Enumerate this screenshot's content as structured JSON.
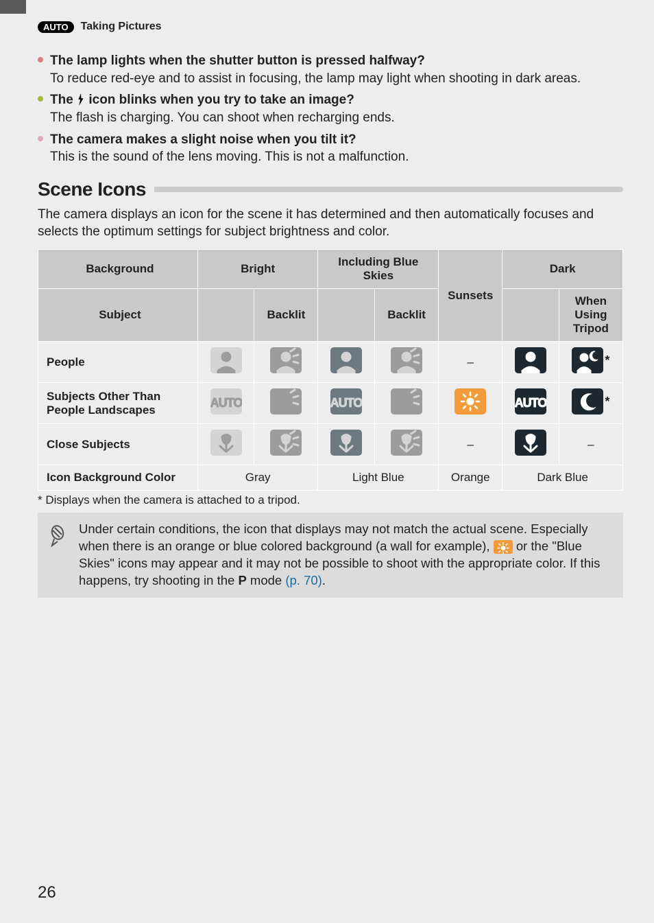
{
  "header": {
    "badge_text": "AUTO",
    "title": "Taking Pictures"
  },
  "bullets": [
    {
      "dot_color": "#d77e7e",
      "q": "The lamp lights when the shutter button is pressed halfway?",
      "a": "To reduce red-eye and to assist in focusing, the lamp may light when shooting in dark areas."
    },
    {
      "dot_color": "#a0b93e",
      "q_pre": "The ",
      "q_post": " icon blinks when you try to take an image?",
      "a": "The flash is charging. You can shoot when recharging ends.",
      "has_flash_icon": true
    },
    {
      "dot_color": "#e0a8b8",
      "q": "The camera makes a slight noise when you tilt it?",
      "a": "This is the sound of the lens moving. This is not a malfunction."
    }
  ],
  "section_heading": "Scene Icons",
  "intro": "The camera displays an icon for the scene it has determined and then automatically focuses and selects the optimum settings for subject brightness and color.",
  "table": {
    "headers": {
      "background": "Background",
      "bright": "Bright",
      "blue": "Including Blue Skies",
      "sunsets": "Sunsets",
      "dark": "Dark",
      "subject": "Subject",
      "backlit": "Backlit",
      "tripod": "When Using Tripod"
    },
    "rows": {
      "people": "People",
      "other": "Subjects Other Than People Landscapes",
      "close": "Close Subjects",
      "bgcolor": "Icon Background Color"
    },
    "bg_colors": {
      "gray": "Gray",
      "lightblue": "Light Blue",
      "orange": "Orange",
      "darkblue": "Dark Blue"
    },
    "tile_colors": {
      "light_gray_bg": "#d4d4d4",
      "light_gray_fg": "#9c9c9c",
      "mid_gray_bg": "#9c9c9c",
      "mid_gray_fg": "#d4d4d4",
      "lblue_bg": "#6c7a80",
      "lblue_fg": "#d4d4d4",
      "orange_bg": "#f29b3a",
      "orange_fg": "#ffffff",
      "dark_bg": "#1e2830",
      "dark_fg": "#ffffff"
    }
  },
  "footnote": "*  Displays when the camera is attached to a tripod.",
  "note": {
    "t1": "Under certain conditions, the icon that displays may not match the actual scene. Especially when there is an orange or blue colored background (a wall for example), ",
    "t2": " or the \"Blue Skies\" icons may appear and it may not be possible to shoot with the appropriate color. If this happens, try shooting in the ",
    "t3": " mode ",
    "link": "(p. 70)",
    "period": "."
  },
  "page_number": "26"
}
